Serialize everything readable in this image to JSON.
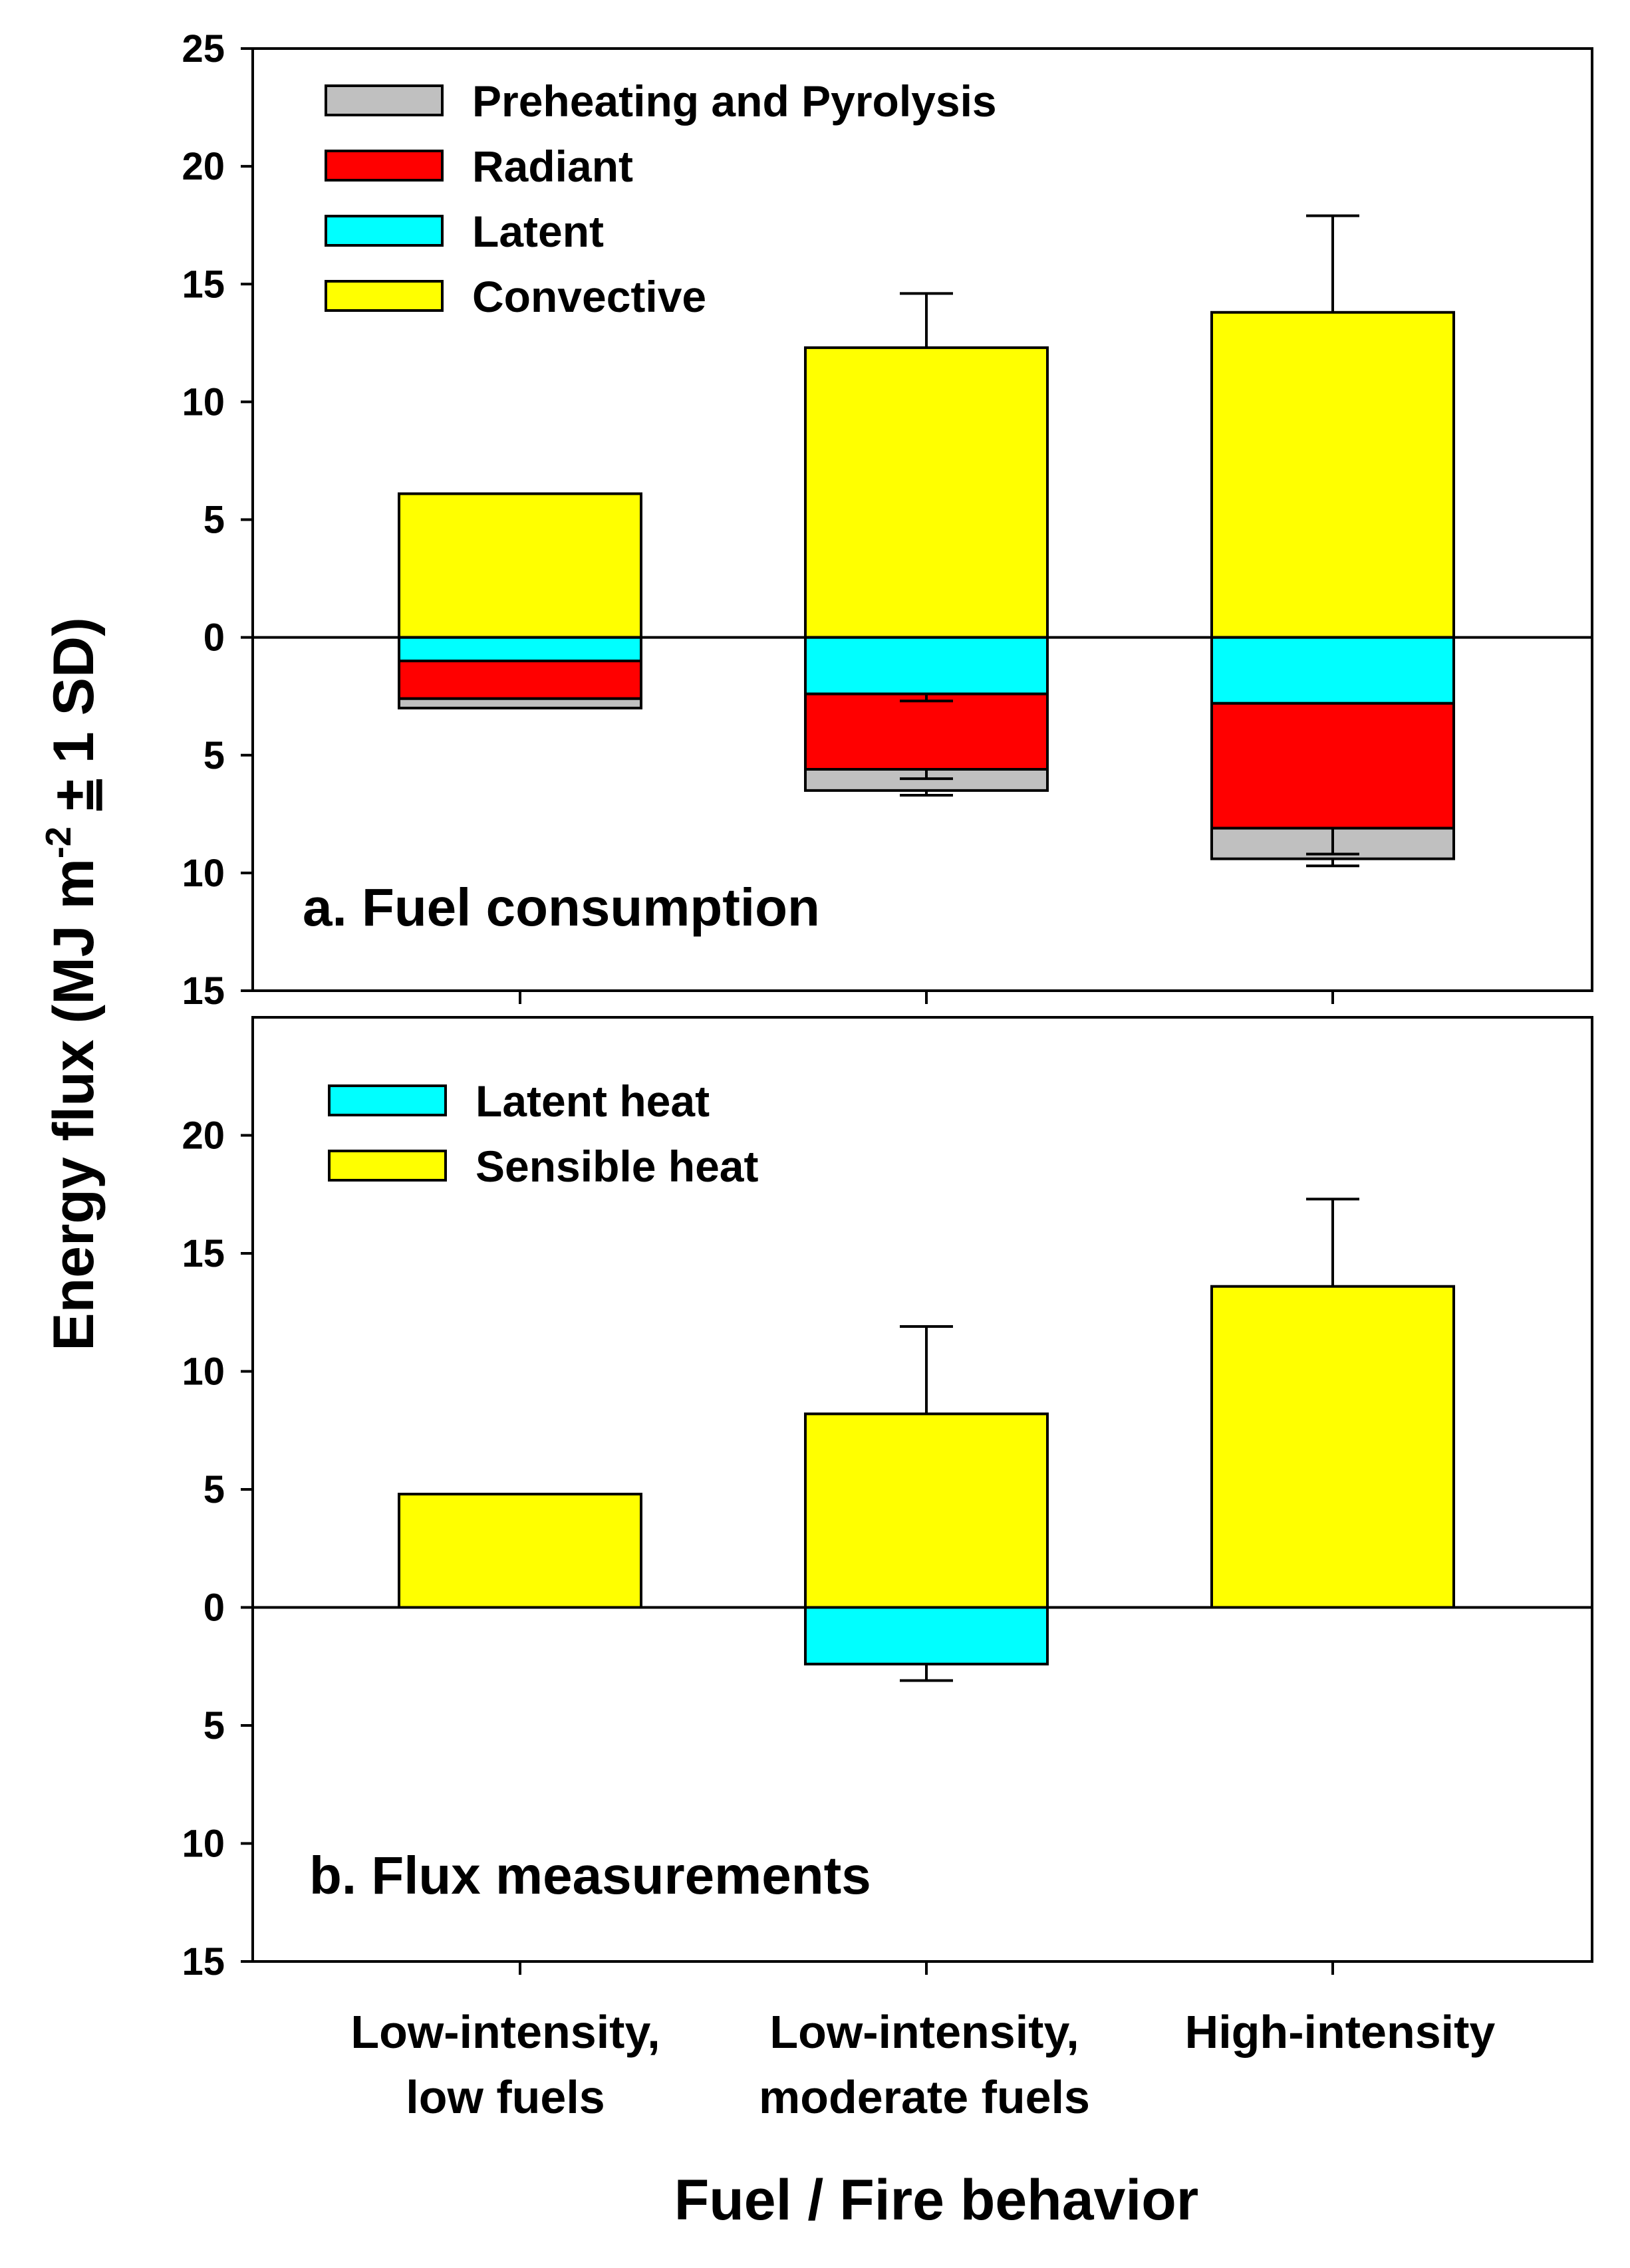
{
  "figure": {
    "ylabel": "Energy flux (MJ m-2 ± 1 SD)",
    "ylabel_main": "Energy flux (MJ m",
    "ylabel_sup": "-2",
    "ylabel_pm": "±",
    "ylabel_tail": "1 SD)",
    "xlabel": "Fuel / Fire behavior",
    "categories": [
      {
        "line1": "Low-intensity,",
        "line2": "low fuels"
      },
      {
        "line1": "Low-intensity,",
        "line2": "moderate fuels"
      },
      {
        "line1": "High-intensity",
        "line2": ""
      }
    ]
  },
  "chart_data": [
    {
      "type": "bar",
      "stacked": true,
      "title": "a. Fuel consumption",
      "ylabel": "Energy flux (MJ m-2 ± 1 SD)",
      "xlabel": "Fuel / Fire behavior",
      "categories": [
        "Low-intensity, low fuels",
        "Low-intensity, moderate fuels",
        "High-intensity"
      ],
      "ylim": [
        -15,
        25
      ],
      "yticks": [
        25,
        20,
        15,
        10,
        5,
        0,
        -5,
        -10,
        -15
      ],
      "ytick_labels": [
        "25",
        "20",
        "15",
        "10",
        "5",
        "0",
        "5",
        "10",
        "15"
      ],
      "legend_position": "top-left",
      "series": [
        {
          "name": "Preheating and Pyrolysis",
          "color": "#c0c0c0",
          "direction": "negative",
          "values": [
            0.4,
            0.9,
            1.3
          ],
          "error": [
            0,
            0.2,
            0.3
          ]
        },
        {
          "name": "Radiant",
          "color": "#ff0000",
          "direction": "negative",
          "values": [
            1.6,
            3.2,
            5.3
          ],
          "error": [
            0,
            0.4,
            1.1
          ]
        },
        {
          "name": "Latent",
          "color": "#00ffff",
          "direction": "negative",
          "values": [
            1.0,
            2.4,
            2.8
          ],
          "error": [
            0,
            0.3,
            0
          ]
        },
        {
          "name": "Convective",
          "color": "#ffff00",
          "direction": "positive",
          "values": [
            6.1,
            12.3,
            13.8
          ],
          "error": [
            0,
            2.3,
            4.1
          ]
        }
      ]
    },
    {
      "type": "bar",
      "stacked": true,
      "title": "b. Flux measurements",
      "ylabel": "Energy flux (MJ m-2 ± 1 SD)",
      "xlabel": "Fuel / Fire behavior",
      "categories": [
        "Low-intensity, low fuels",
        "Low-intensity, moderate fuels",
        "High-intensity"
      ],
      "ylim": [
        -15,
        25
      ],
      "yticks": [
        20,
        15,
        10,
        5,
        0,
        -5,
        -10,
        -15
      ],
      "ytick_labels": [
        "20",
        "15",
        "10",
        "5",
        "0",
        "5",
        "10",
        "15"
      ],
      "legend_position": "top-left",
      "series": [
        {
          "name": "Latent heat",
          "color": "#00ffff",
          "direction": "negative",
          "values": [
            0,
            2.4,
            0
          ],
          "error": [
            0,
            0.7,
            0
          ]
        },
        {
          "name": "Sensible heat",
          "color": "#ffff00",
          "direction": "positive",
          "values": [
            4.8,
            8.2,
            13.6
          ],
          "error": [
            0,
            3.7,
            3.7
          ]
        }
      ]
    }
  ]
}
